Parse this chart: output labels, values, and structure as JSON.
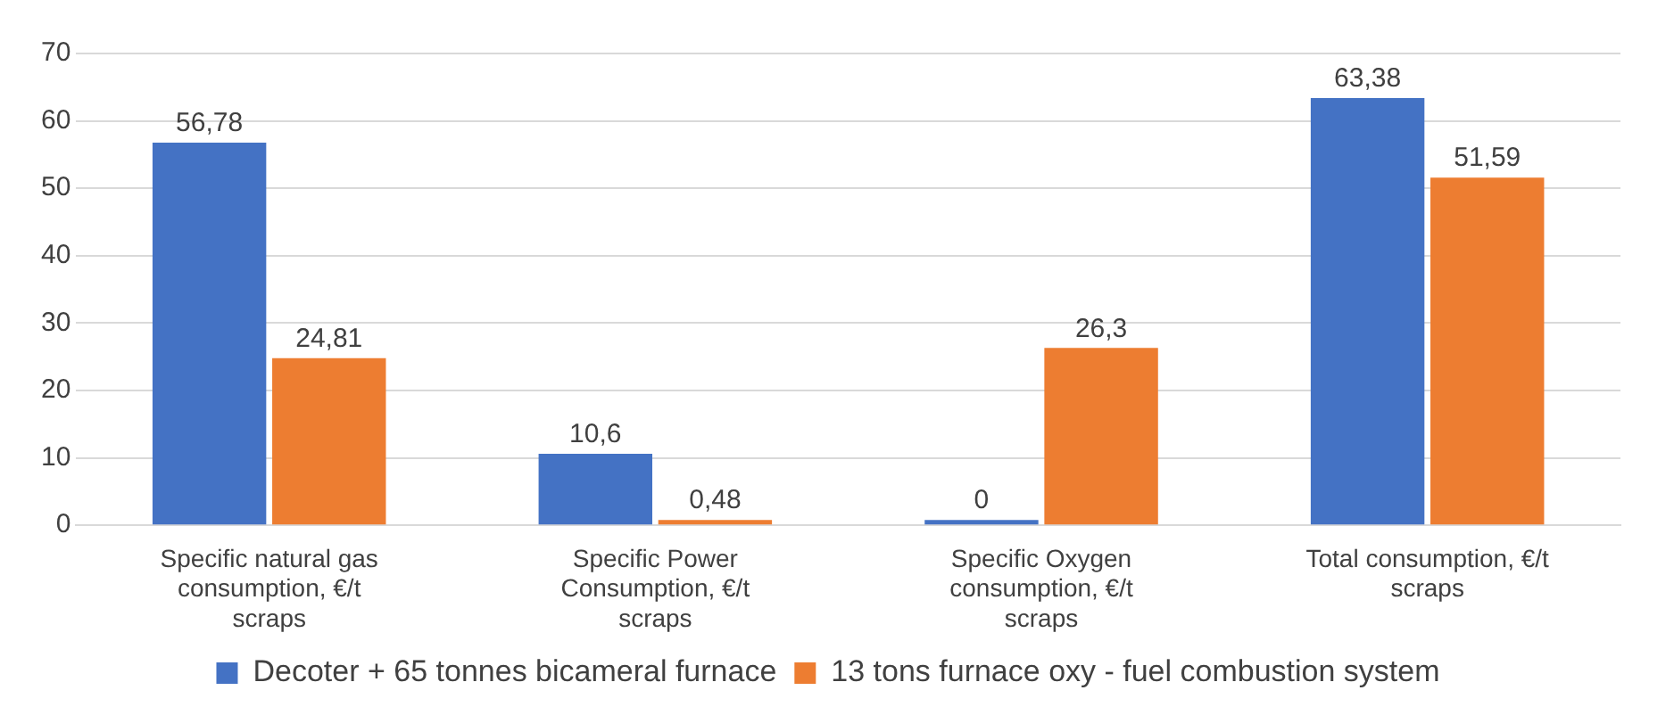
{
  "chart_data": {
    "type": "bar",
    "categories": [
      "Specific natural gas consumption, €/t scraps",
      "Specific Power Consumption, €/t scraps",
      "Specific Oxygen consumption, €/t scraps",
      "Total consumption, €/t scraps"
    ],
    "series": [
      {
        "name": "Decoter + 65 tonnes bicameral furnace",
        "color": "#4472c4",
        "values": [
          56.78,
          10.6,
          0,
          63.38
        ],
        "value_labels": [
          "56,78",
          "10,6",
          "0",
          "63,38"
        ]
      },
      {
        "name": "13 tons furnace oxy - fuel combustion system",
        "color": "#ed7d31",
        "values": [
          24.81,
          0.48,
          26.3,
          51.59
        ],
        "value_labels": [
          "24,81",
          "0,48",
          "26,3",
          "51,59"
        ]
      }
    ],
    "ylim": [
      0,
      70
    ],
    "yticks": [
      0,
      10,
      20,
      30,
      40,
      50,
      60,
      70
    ],
    "grid": "y",
    "legend": "bottom"
  }
}
